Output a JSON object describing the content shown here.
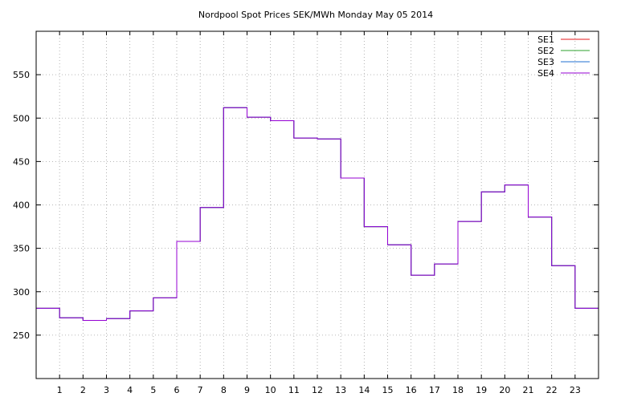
{
  "chart_data": {
    "type": "line",
    "title": "Nordpool Spot Prices SEK/MWh Monday May 05 2014",
    "xlabel": "",
    "ylabel": "",
    "x_ticks": [
      "1",
      "2",
      "3",
      "4",
      "5",
      "6",
      "7",
      "8",
      "9",
      "10",
      "11",
      "12",
      "13",
      "14",
      "15",
      "16",
      "17",
      "18",
      "19",
      "20",
      "21",
      "22",
      "23"
    ],
    "y_ticks": [
      "250",
      "300",
      "350",
      "400",
      "450",
      "500",
      "550"
    ],
    "xlim": [
      0,
      24
    ],
    "ylim": [
      200,
      600
    ],
    "grid": true,
    "legend_position": "top-right",
    "step": true,
    "series": [
      {
        "name": "SE1",
        "color": "#e41a1c",
        "values": [
          281,
          270,
          267,
          269,
          278,
          293,
          358,
          397,
          512,
          501,
          497,
          477,
          476,
          431,
          375,
          354,
          319,
          332,
          381,
          415,
          423,
          386,
          330,
          281
        ]
      },
      {
        "name": "SE2",
        "color": "#2ca02c",
        "values": [
          281,
          270,
          267,
          269,
          278,
          293,
          358,
          397,
          512,
          501,
          497,
          477,
          476,
          431,
          375,
          354,
          319,
          332,
          381,
          415,
          423,
          386,
          330,
          281
        ]
      },
      {
        "name": "SE3",
        "color": "#1f6fd1",
        "values": [
          281,
          270,
          267,
          269,
          278,
          293,
          358,
          397,
          512,
          501,
          497,
          477,
          476,
          431,
          375,
          354,
          319,
          332,
          381,
          415,
          423,
          386,
          330,
          281
        ]
      },
      {
        "name": "SE4",
        "color": "#9400d3",
        "values": [
          281,
          270,
          267,
          269,
          278,
          293,
          358,
          397,
          512,
          501,
          497,
          477,
          476,
          431,
          375,
          354,
          319,
          332,
          381,
          415,
          423,
          386,
          330,
          281
        ]
      }
    ]
  }
}
